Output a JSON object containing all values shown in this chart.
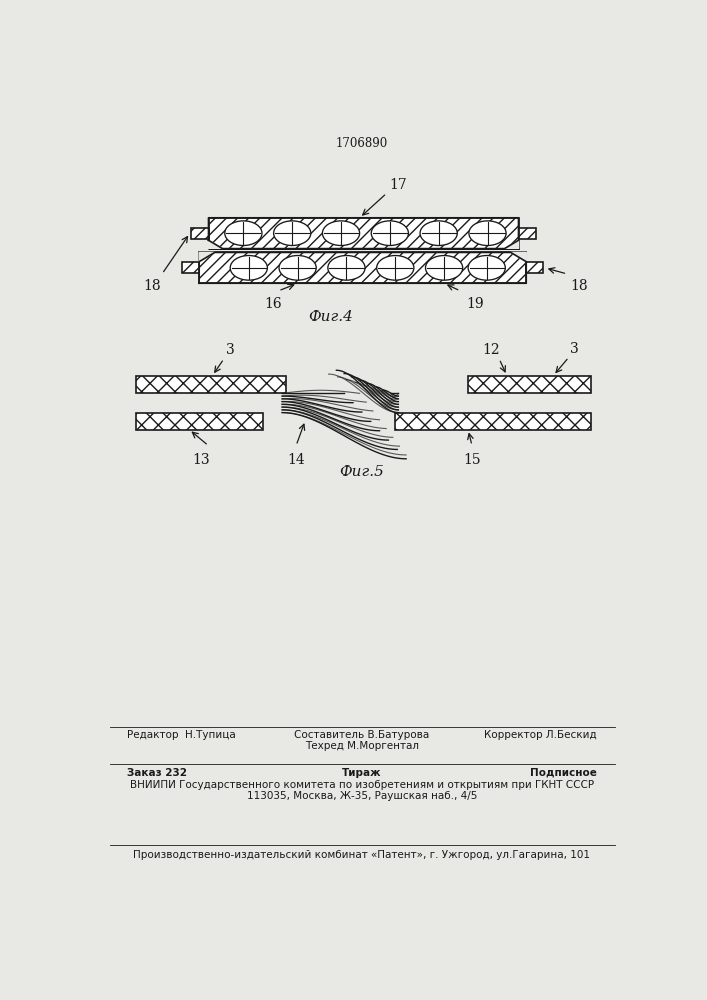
{
  "patent_number": "1706890",
  "fig4_label": "Фиг.4",
  "fig5_label": "Фиг.5",
  "bg_color": "#e8e8e4",
  "line_color": "#1a1a1a",
  "bottom_text_line1_left": "Редактор  Н.Тупица",
  "bottom_text_line1_center": "Составитель В.Батурова\nТехред М.Моргентал",
  "bottom_text_line1_right": "Корректор Л.Бескид",
  "bottom_text_line2_left": "Заказ 232",
  "bottom_text_line2_center": "Тираж",
  "bottom_text_line2_right": "Подписное",
  "bottom_text_line3": "ВНИИПИ Государственного комитета по изобретениям и открытиям при ГКНТ СССР",
  "bottom_text_line4": "113035, Москва, Ж-35, Раушская наб., 4/5",
  "bottom_text_line5": "Производственно-издательский комбинат «Патент», г. Ужгород, ул.Гагарина, 101"
}
